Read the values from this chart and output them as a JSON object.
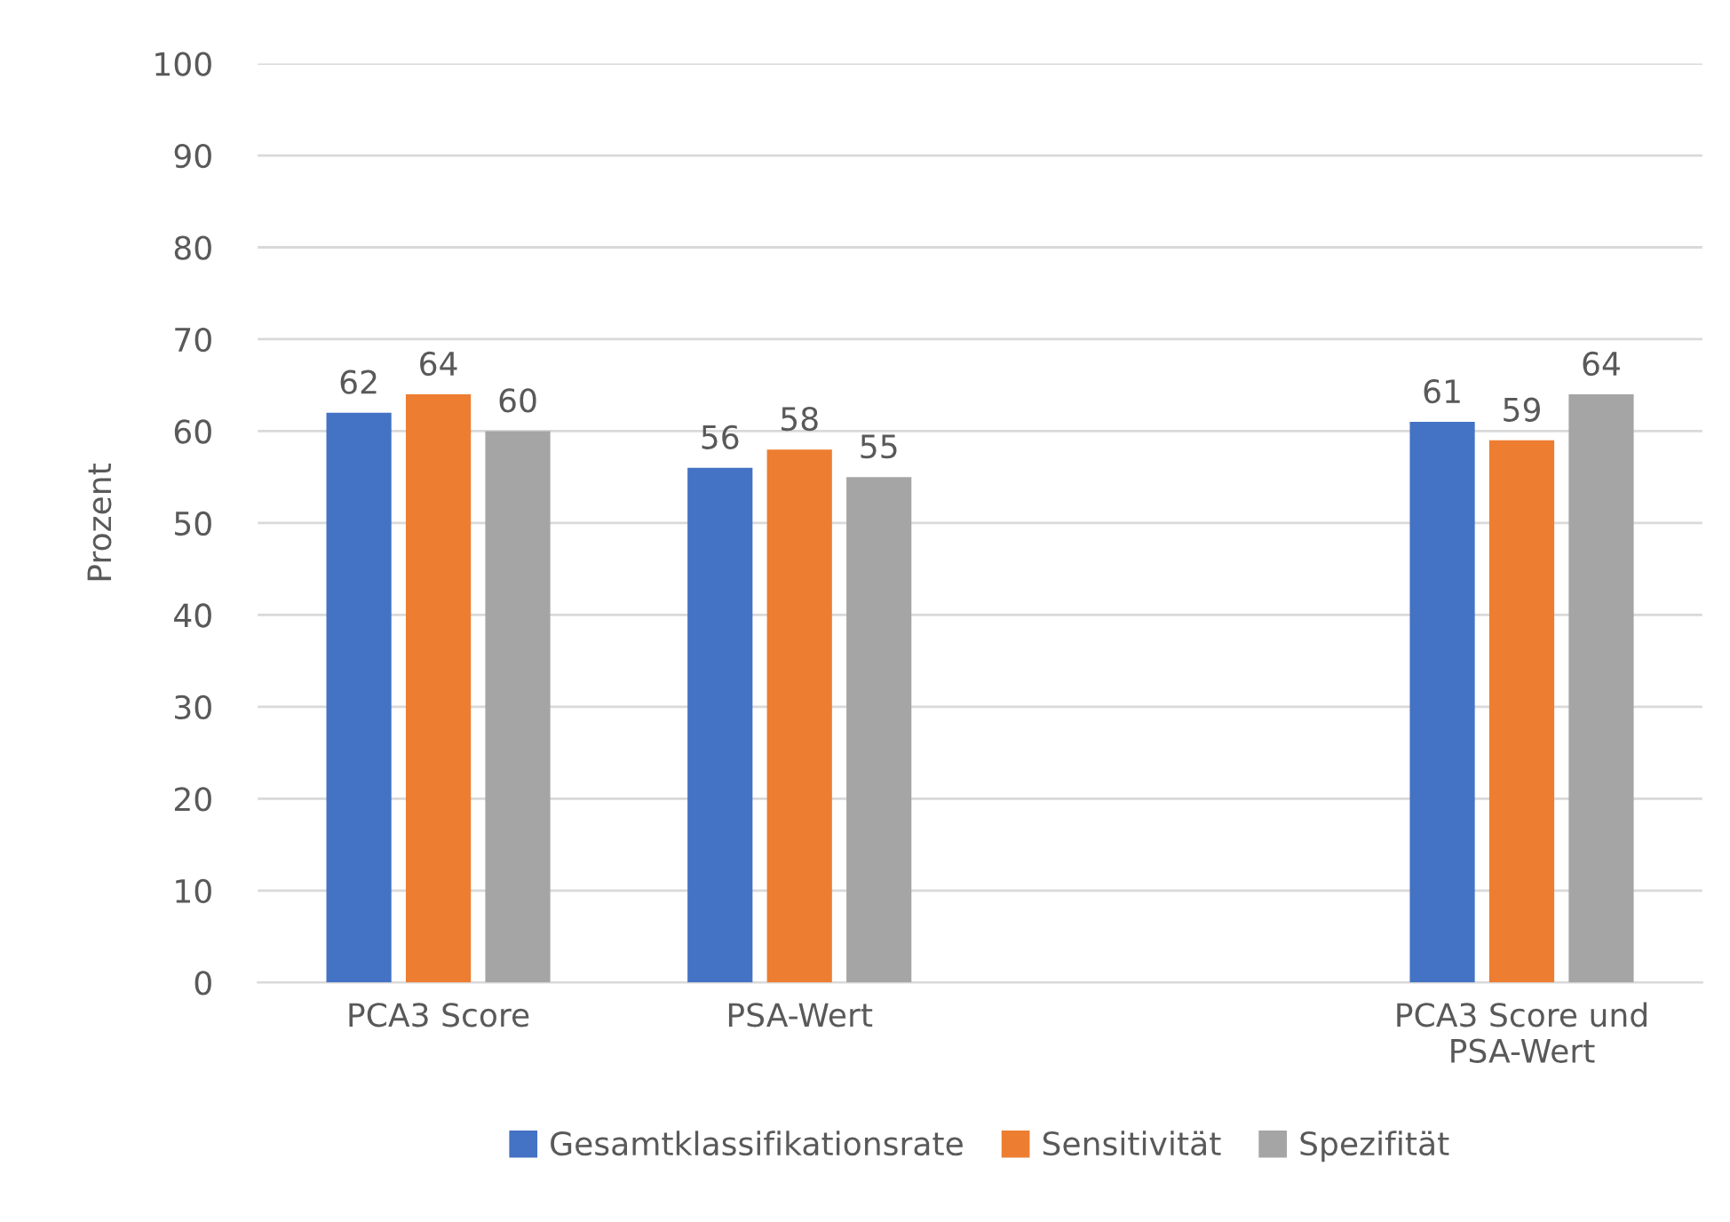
{
  "chart_data": {
    "type": "bar",
    "ylabel": "Prozent",
    "categories": [
      "PCA3 Score",
      "PSA-Wert",
      null,
      "PCA3 Score und PSA-Wert"
    ],
    "series": [
      {
        "name": "Gesamtklassifikationsrate",
        "color": "#4472c4",
        "values": [
          62,
          56,
          null,
          61
        ]
      },
      {
        "name": "Sensitivität",
        "color": "#ed7d31",
        "values": [
          64,
          58,
          null,
          59
        ]
      },
      {
        "name": "Spezifität",
        "color": "#a5a5a5",
        "values": [
          60,
          55,
          null,
          64
        ]
      }
    ],
    "ylim": [
      0,
      100
    ],
    "yticks": [
      0,
      10,
      20,
      30,
      40,
      50,
      60,
      70,
      80,
      90,
      100
    ],
    "grid": "y",
    "legend": "bottom",
    "data_labels": true
  }
}
